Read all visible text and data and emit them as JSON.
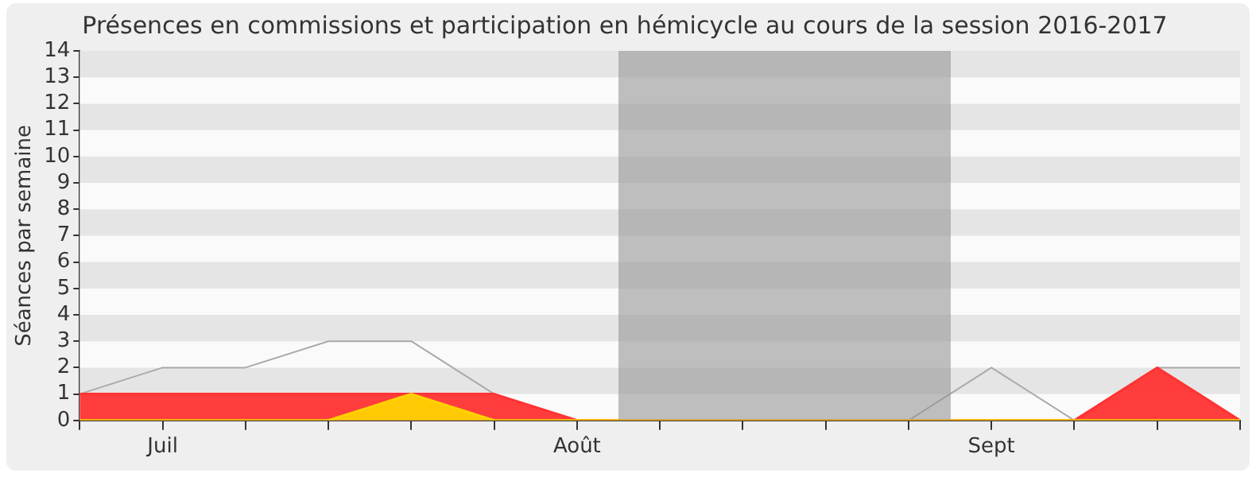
{
  "chart_data": {
    "type": "area",
    "title": "Présences en commissions et participation en hémicycle au cours de la session 2016-2017",
    "ylabel": "Séances par semaine",
    "categories": [
      null,
      "Juil",
      null,
      null,
      null,
      null,
      "Août",
      null,
      null,
      null,
      null,
      "Sept",
      null,
      null,
      null
    ],
    "series": [
      {
        "type": "line",
        "color": "#aaaaaa",
        "values": [
          1,
          2,
          2,
          3,
          3,
          1,
          0,
          0,
          0,
          0,
          0,
          2,
          0,
          2,
          2
        ]
      },
      {
        "color": "#ff3333",
        "values": [
          1,
          1,
          1,
          1,
          1,
          1,
          0,
          0,
          0,
          0,
          0,
          0,
          0,
          2,
          0
        ]
      },
      {
        "color": "#ffd200",
        "values": [
          0,
          0,
          0,
          0,
          1,
          0,
          0,
          0,
          0,
          0,
          0,
          0,
          0,
          0,
          0
        ]
      }
    ],
    "ylim": [
      0,
      14
    ],
    "yticks": [
      0,
      1,
      2,
      3,
      4,
      5,
      6,
      7,
      8,
      9,
      10,
      11,
      12,
      13,
      14
    ],
    "legend": false,
    "marker": "none"
  }
}
